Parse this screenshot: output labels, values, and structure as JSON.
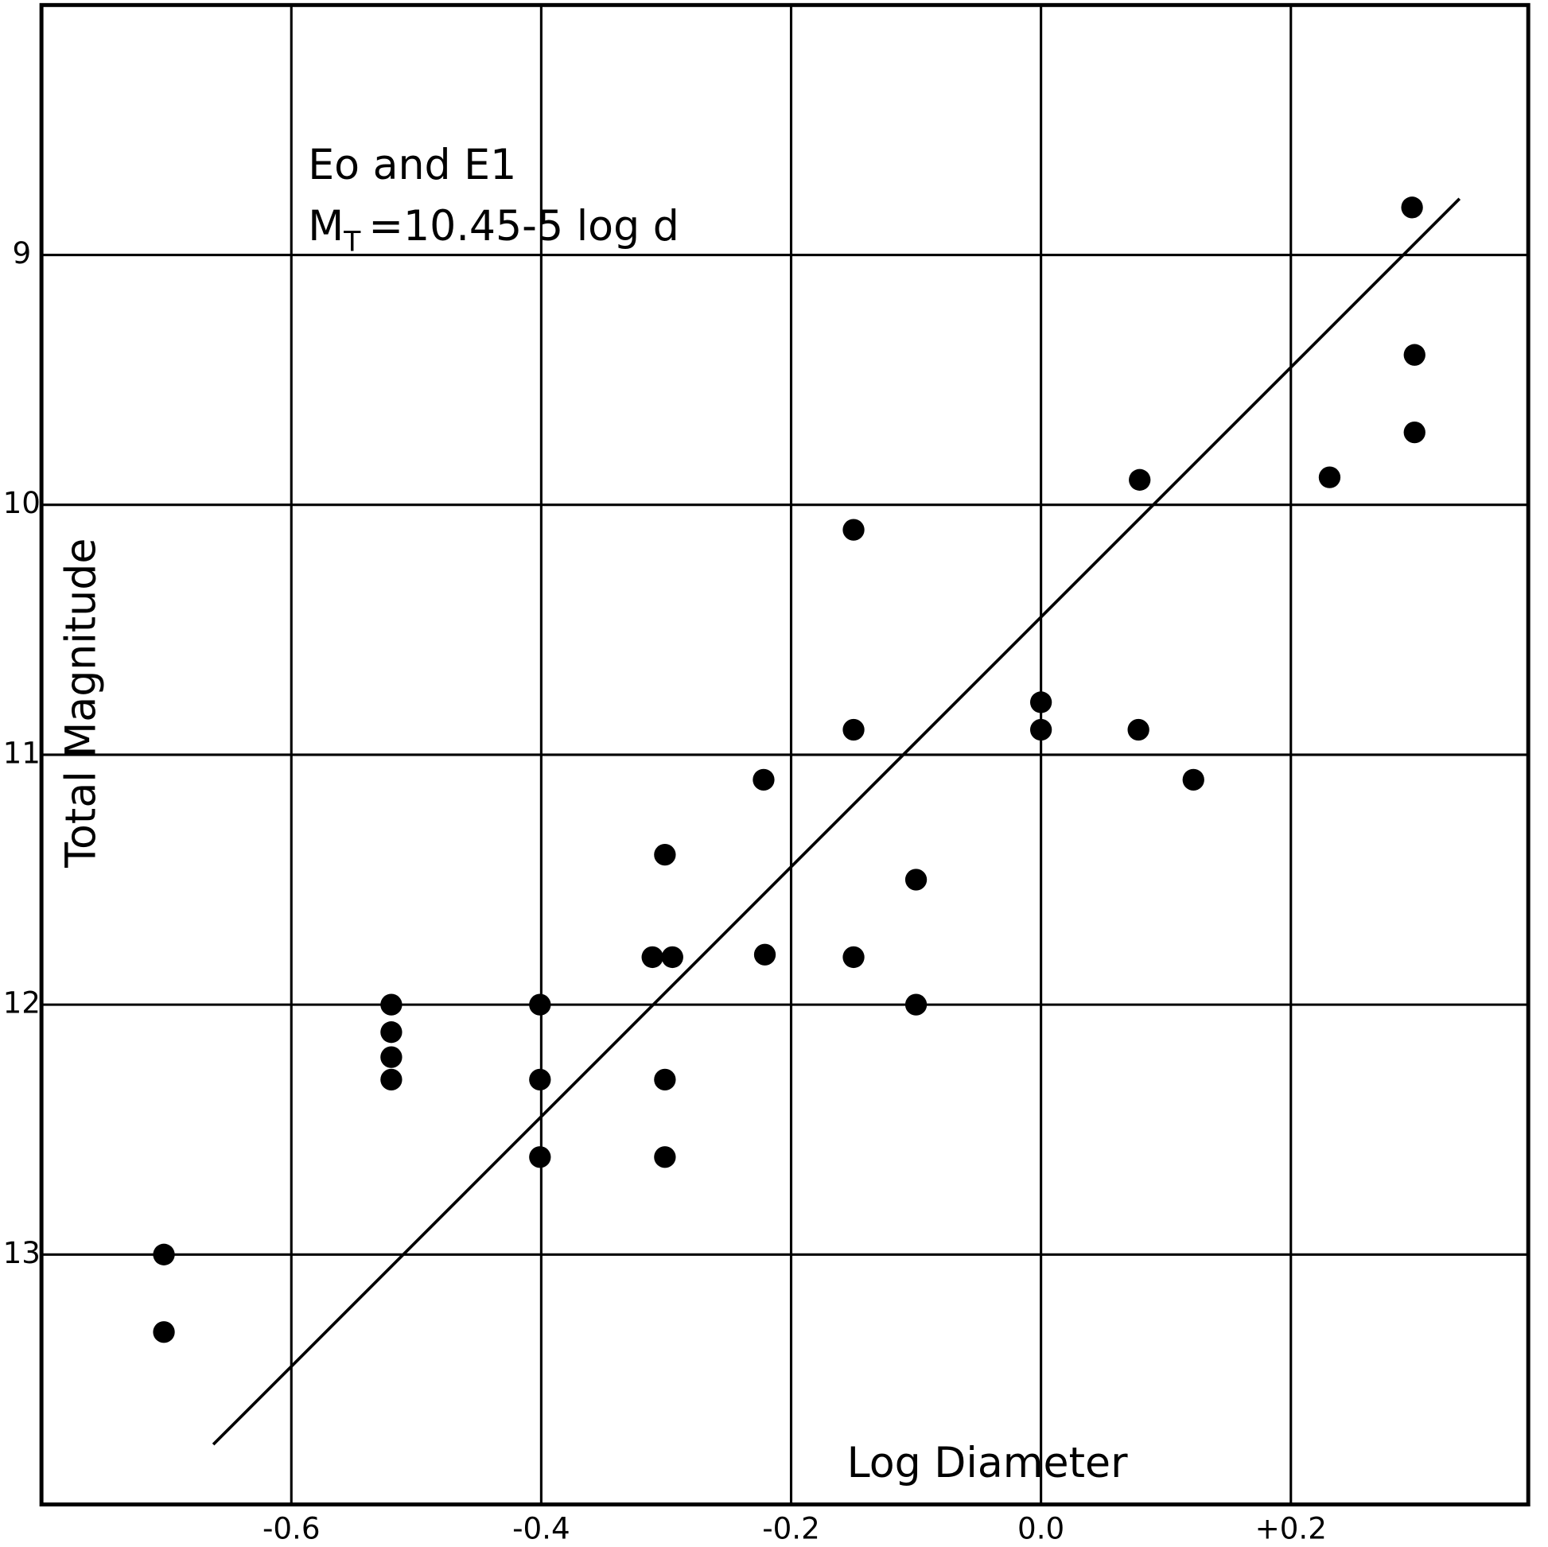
{
  "chart_data": {
    "type": "scatter",
    "annotations": [
      "Eo and E1"
    ],
    "equation": {
      "symbol": "M",
      "subscript": "T",
      "text": "=10.45-5 log d"
    },
    "x_label": "Log Diameter",
    "y_label": "Total Magnitude",
    "xlim": [
      -0.8,
      0.39
    ],
    "ylim": [
      8,
      14
    ],
    "y_inverted": true,
    "xticks": [
      -0.6,
      -0.4,
      -0.2,
      {
        "value": 0,
        "label": "0.0"
      },
      {
        "value": 0.2,
        "label": "+0.2"
      }
    ],
    "yticks": [
      9,
      10,
      11,
      12,
      13
    ],
    "grid": true,
    "color": "#000000",
    "x": [
      0.297,
      0.299,
      0.299,
      0.231,
      0.079,
      -0.15,
      0.0,
      0.0,
      -0.15,
      0.078,
      0.122,
      -0.222,
      -0.301,
      -0.1,
      -0.311,
      -0.295,
      -0.221,
      -0.15,
      -0.1,
      -0.401,
      -0.52,
      -0.52,
      -0.52,
      -0.52,
      -0.401,
      -0.301,
      -0.401,
      -0.301,
      -0.702,
      -0.702
    ],
    "y": [
      8.81,
      9.4,
      9.71,
      9.89,
      9.9,
      10.1,
      10.79,
      10.9,
      10.9,
      10.9,
      11.1,
      11.1,
      11.4,
      11.5,
      11.81,
      11.81,
      11.8,
      11.81,
      12.0,
      12.0,
      12.0,
      12.11,
      12.21,
      12.3,
      12.3,
      12.3,
      12.61,
      12.61,
      13.0,
      13.31
    ],
    "fit": {
      "x": [
        -0.6625,
        0.335
      ],
      "y": [
        13.76,
        8.775
      ]
    }
  }
}
